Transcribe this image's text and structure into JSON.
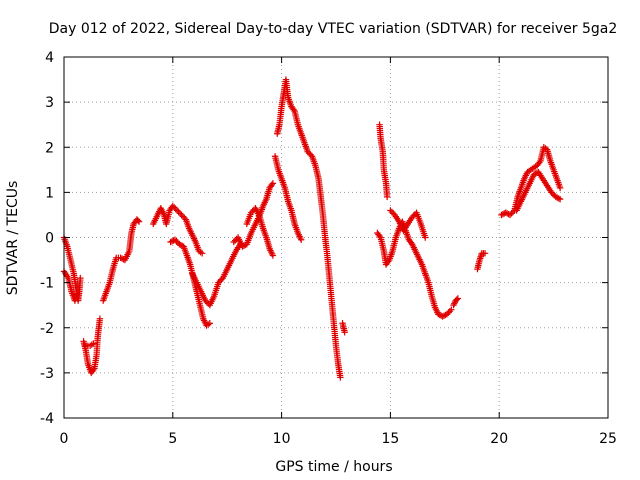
{
  "chart_data": {
    "type": "scatter",
    "title": "Day 012 of 2022, Sidereal Day-to-day VTEC variation (SDTVAR) for receiver 5ga2",
    "xlabel": "GPS time / hours",
    "ylabel": "SDTVAR / TECUs",
    "xlim": [
      0,
      25
    ],
    "ylim": [
      -4,
      4
    ],
    "xticks": [
      "0",
      "5",
      "10",
      "15",
      "20",
      "25"
    ],
    "yticks": [
      "4",
      "3",
      "2",
      "1",
      "0",
      "-1",
      "-2",
      "-3",
      "-4"
    ],
    "grid": true,
    "marker": "+",
    "series": [
      {
        "name": "SDTVAR",
        "color": "#e00000",
        "segments": [
          [
            [
              0.0,
              0.0
            ],
            [
              0.15,
              -0.2
            ],
            [
              0.3,
              -0.5
            ],
            [
              0.45,
              -0.8
            ],
            [
              0.55,
              -1.1
            ],
            [
              0.65,
              -1.4
            ],
            [
              0.7,
              -1.2
            ],
            [
              0.75,
              -0.9
            ]
          ],
          [
            [
              0.0,
              -0.75
            ],
            [
              0.2,
              -0.9
            ],
            [
              0.35,
              -1.2
            ],
            [
              0.5,
              -1.4
            ],
            [
              0.6,
              -1.25
            ]
          ],
          [
            [
              0.9,
              -2.3
            ],
            [
              1.0,
              -2.5
            ],
            [
              1.1,
              -2.8
            ],
            [
              1.25,
              -3.0
            ],
            [
              1.4,
              -2.9
            ],
            [
              1.5,
              -2.6
            ],
            [
              1.55,
              -2.2
            ],
            [
              1.65,
              -1.8
            ]
          ],
          [
            [
              1.0,
              -2.4
            ],
            [
              1.2,
              -2.4
            ],
            [
              1.35,
              -2.35
            ]
          ],
          [
            [
              1.8,
              -1.4
            ],
            [
              1.95,
              -1.2
            ],
            [
              2.1,
              -1.0
            ],
            [
              2.25,
              -0.7
            ],
            [
              2.4,
              -0.45
            ],
            [
              2.6,
              -0.45
            ],
            [
              2.8,
              -0.5
            ],
            [
              3.0,
              -0.3
            ],
            [
              3.1,
              0.1
            ],
            [
              3.2,
              0.3
            ],
            [
              3.35,
              0.4
            ],
            [
              3.45,
              0.35
            ]
          ],
          [
            [
              4.1,
              0.3
            ],
            [
              4.3,
              0.5
            ],
            [
              4.45,
              0.65
            ],
            [
              4.6,
              0.5
            ],
            [
              4.7,
              0.3
            ],
            [
              4.85,
              0.6
            ],
            [
              5.0,
              0.7
            ],
            [
              5.2,
              0.6
            ],
            [
              5.4,
              0.5
            ],
            [
              5.6,
              0.4
            ],
            [
              5.75,
              0.2
            ],
            [
              5.9,
              0.05
            ],
            [
              6.05,
              -0.1
            ],
            [
              6.2,
              -0.3
            ],
            [
              6.35,
              -0.35
            ]
          ],
          [
            [
              4.9,
              -0.1
            ],
            [
              5.1,
              -0.05
            ],
            [
              5.3,
              -0.15
            ],
            [
              5.5,
              -0.2
            ],
            [
              5.65,
              -0.4
            ],
            [
              5.8,
              -0.6
            ],
            [
              5.95,
              -0.9
            ],
            [
              6.1,
              -1.2
            ],
            [
              6.25,
              -1.5
            ],
            [
              6.4,
              -1.8
            ],
            [
              6.55,
              -1.95
            ],
            [
              6.7,
              -1.9
            ]
          ],
          [
            [
              5.9,
              -0.8
            ],
            [
              6.1,
              -1.0
            ],
            [
              6.3,
              -1.2
            ],
            [
              6.5,
              -1.4
            ],
            [
              6.7,
              -1.5
            ],
            [
              6.9,
              -1.3
            ],
            [
              7.1,
              -1.0
            ],
            [
              7.3,
              -0.9
            ],
            [
              7.5,
              -0.7
            ],
            [
              7.7,
              -0.5
            ],
            [
              7.9,
              -0.3
            ],
            [
              8.1,
              -0.15
            ]
          ],
          [
            [
              7.8,
              -0.1
            ],
            [
              8.0,
              0.0
            ],
            [
              8.2,
              -0.2
            ],
            [
              8.4,
              -0.15
            ],
            [
              8.6,
              0.1
            ],
            [
              8.8,
              0.3
            ],
            [
              9.0,
              0.5
            ],
            [
              9.15,
              0.7
            ],
            [
              9.3,
              0.85
            ],
            [
              9.45,
              1.1
            ],
            [
              9.6,
              1.2
            ]
          ],
          [
            [
              8.4,
              0.3
            ],
            [
              8.6,
              0.55
            ],
            [
              8.8,
              0.65
            ],
            [
              9.0,
              0.45
            ],
            [
              9.15,
              0.2
            ],
            [
              9.3,
              0.0
            ],
            [
              9.45,
              -0.25
            ],
            [
              9.6,
              -0.4
            ]
          ],
          [
            [
              9.7,
              1.8
            ],
            [
              9.85,
              1.5
            ],
            [
              10.0,
              1.3
            ],
            [
              10.15,
              1.1
            ],
            [
              10.3,
              0.8
            ],
            [
              10.45,
              0.6
            ],
            [
              10.6,
              0.3
            ],
            [
              10.75,
              0.1
            ],
            [
              10.9,
              -0.05
            ]
          ],
          [
            [
              9.8,
              2.3
            ],
            [
              9.9,
              2.5
            ],
            [
              10.0,
              2.9
            ],
            [
              10.1,
              3.2
            ],
            [
              10.2,
              3.5
            ],
            [
              10.3,
              3.1
            ],
            [
              10.45,
              2.9
            ],
            [
              10.6,
              2.8
            ],
            [
              10.75,
              2.5
            ],
            [
              10.9,
              2.3
            ],
            [
              11.05,
              2.1
            ],
            [
              11.2,
              1.9
            ],
            [
              11.4,
              1.8
            ],
            [
              11.55,
              1.6
            ],
            [
              11.7,
              1.3
            ],
            [
              11.8,
              0.9
            ],
            [
              11.9,
              0.5
            ],
            [
              12.0,
              0.0
            ],
            [
              12.1,
              -0.4
            ],
            [
              12.2,
              -0.9
            ],
            [
              12.3,
              -1.4
            ],
            [
              12.4,
              -1.9
            ],
            [
              12.5,
              -2.4
            ],
            [
              12.6,
              -2.8
            ],
            [
              12.7,
              -3.1
            ]
          ],
          [
            [
              12.8,
              -1.9
            ],
            [
              12.9,
              -2.1
            ]
          ],
          [
            [
              14.5,
              2.5
            ],
            [
              14.55,
              2.2
            ],
            [
              14.65,
              1.9
            ],
            [
              14.7,
              1.5
            ],
            [
              14.8,
              1.2
            ],
            [
              14.85,
              0.9
            ]
          ],
          [
            [
              14.4,
              0.1
            ],
            [
              14.55,
              0.0
            ],
            [
              14.7,
              -0.3
            ],
            [
              14.8,
              -0.6
            ],
            [
              14.95,
              -0.5
            ],
            [
              15.1,
              -0.3
            ],
            [
              15.25,
              0.0
            ],
            [
              15.4,
              0.2
            ],
            [
              15.55,
              0.35
            ],
            [
              15.7,
              0.15
            ],
            [
              15.85,
              -0.05
            ],
            [
              16.0,
              -0.15
            ],
            [
              16.15,
              -0.3
            ],
            [
              16.3,
              -0.45
            ],
            [
              16.45,
              -0.6
            ],
            [
              16.6,
              -0.8
            ],
            [
              16.75,
              -1.0
            ],
            [
              16.9,
              -1.3
            ],
            [
              17.05,
              -1.55
            ],
            [
              17.2,
              -1.7
            ],
            [
              17.4,
              -1.75
            ],
            [
              17.6,
              -1.7
            ],
            [
              17.8,
              -1.6
            ]
          ],
          [
            [
              15.0,
              0.6
            ],
            [
              15.2,
              0.5
            ],
            [
              15.4,
              0.35
            ],
            [
              15.6,
              0.15
            ],
            [
              15.8,
              0.3
            ],
            [
              16.0,
              0.45
            ],
            [
              16.2,
              0.55
            ],
            [
              16.4,
              0.3
            ],
            [
              16.6,
              0.0
            ]
          ],
          [
            [
              17.9,
              -1.5
            ],
            [
              18.0,
              -1.4
            ],
            [
              18.1,
              -1.35
            ]
          ],
          [
            [
              19.0,
              -0.7
            ],
            [
              19.1,
              -0.5
            ],
            [
              19.2,
              -0.35
            ],
            [
              19.35,
              -0.35
            ]
          ],
          [
            [
              20.1,
              0.5
            ],
            [
              20.3,
              0.55
            ],
            [
              20.5,
              0.5
            ],
            [
              20.7,
              0.6
            ],
            [
              20.85,
              0.9
            ],
            [
              21.0,
              1.1
            ],
            [
              21.15,
              1.3
            ],
            [
              21.3,
              1.45
            ],
            [
              21.45,
              1.5
            ],
            [
              21.6,
              1.55
            ],
            [
              21.75,
              1.6
            ],
            [
              21.9,
              1.7
            ],
            [
              22.05,
              2.0
            ],
            [
              22.2,
              1.95
            ],
            [
              22.35,
              1.7
            ],
            [
              22.5,
              1.5
            ],
            [
              22.65,
              1.3
            ],
            [
              22.8,
              1.1
            ]
          ],
          [
            [
              20.8,
              0.6
            ],
            [
              21.0,
              0.8
            ],
            [
              21.2,
              1.0
            ],
            [
              21.4,
              1.2
            ],
            [
              21.6,
              1.4
            ],
            [
              21.8,
              1.45
            ],
            [
              22.0,
              1.3
            ],
            [
              22.2,
              1.15
            ],
            [
              22.4,
              1.0
            ],
            [
              22.6,
              0.9
            ],
            [
              22.8,
              0.85
            ]
          ]
        ]
      }
    ]
  }
}
